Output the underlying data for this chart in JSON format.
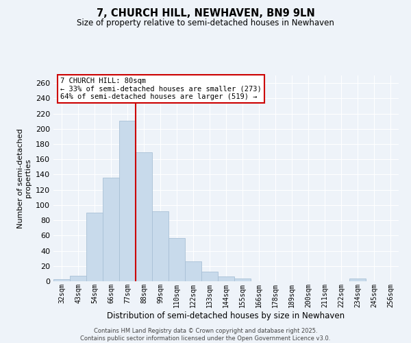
{
  "title": "7, CHURCH HILL, NEWHAVEN, BN9 9LN",
  "subtitle": "Size of property relative to semi-detached houses in Newhaven",
  "xlabel": "Distribution of semi-detached houses by size in Newhaven",
  "ylabel": "Number of semi-detached\nproperties",
  "categories": [
    "32sqm",
    "43sqm",
    "54sqm",
    "66sqm",
    "77sqm",
    "88sqm",
    "99sqm",
    "110sqm",
    "122sqm",
    "133sqm",
    "144sqm",
    "155sqm",
    "166sqm",
    "178sqm",
    "189sqm",
    "200sqm",
    "211sqm",
    "222sqm",
    "234sqm",
    "245sqm",
    "256sqm"
  ],
  "values": [
    3,
    7,
    90,
    136,
    211,
    169,
    92,
    57,
    26,
    13,
    6,
    4,
    0,
    0,
    0,
    0,
    0,
    0,
    4,
    0,
    0
  ],
  "bar_color": "#c8daeb",
  "bar_edge_color": "#a8c0d6",
  "property_line_bin": 4,
  "property_label": "7 CHURCH HILL: 80sqm",
  "annotation_line1": "← 33% of semi-detached houses are smaller (273)",
  "annotation_line2": "64% of semi-detached houses are larger (519) →",
  "vline_color": "#cc0000",
  "ylim": [
    0,
    270
  ],
  "yticks": [
    0,
    20,
    40,
    60,
    80,
    100,
    120,
    140,
    160,
    180,
    200,
    220,
    240,
    260
  ],
  "background_color": "#eef3f9",
  "grid_color": "#ffffff",
  "footer_line1": "Contains HM Land Registry data © Crown copyright and database right 2025.",
  "footer_line2": "Contains public sector information licensed under the Open Government Licence v3.0."
}
